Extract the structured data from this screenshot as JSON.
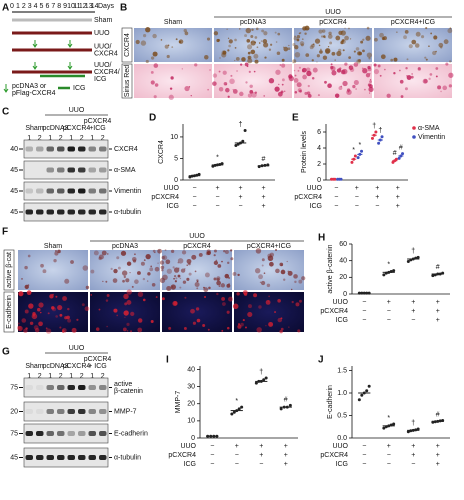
{
  "panels": {
    "A": {
      "letter": "A",
      "day_ticks": [
        0,
        1,
        2,
        3,
        4,
        5,
        6,
        7,
        8,
        9,
        10,
        11,
        12,
        13,
        14
      ],
      "day_unit": "Days",
      "rows": [
        [
          "Sham"
        ],
        [
          "UUO"
        ],
        [
          "UUO/",
          "CXCR4"
        ],
        [
          "UUO/",
          "CXCR4/",
          "ICG"
        ]
      ],
      "legend_plasmid": [
        "pcDNA3 or",
        "pFlag-CXCR4"
      ],
      "legend_icg": "ICG"
    },
    "B": {
      "letter": "B",
      "group_header": "UUO",
      "headers": [
        "Sham",
        "pcDNA3",
        "pCXCR4",
        "pCXCR4+ICG"
      ],
      "rows": [
        "CXCR4",
        "Sirius Red"
      ]
    },
    "C": {
      "letter": "C",
      "group_header": "UUO",
      "groups": [
        [
          "Sham"
        ],
        [
          "pcDNA3"
        ],
        [
          "pCXCR4"
        ],
        [
          "pCXCR4",
          "+ICG"
        ]
      ],
      "lanes": [
        1,
        2,
        1,
        2,
        1,
        2,
        1,
        2
      ],
      "markers": [
        40,
        45,
        45,
        45
      ],
      "bands": [
        [
          "CXCR4"
        ],
        [
          "α-SMA"
        ],
        [
          "Vimentin"
        ],
        [
          "α-tubulin"
        ]
      ]
    },
    "F": {
      "letter": "F",
      "group_header": "UUO",
      "headers": [
        "Sham",
        "pcDNA3",
        "pCXCR4",
        "pCXCR4+ICG"
      ],
      "rows": [
        "active β-cat",
        "E-cadherin"
      ]
    },
    "G": {
      "letter": "G",
      "group_header": "UUO",
      "groups": [
        [
          "Sham"
        ],
        [
          "pcDNA3"
        ],
        [
          "pCXCR4"
        ],
        [
          "pCXCR4",
          "+ ICG"
        ]
      ],
      "lanes": [
        1,
        2,
        1,
        2,
        1,
        2,
        1,
        2
      ],
      "markers": [
        75,
        20,
        75,
        45
      ],
      "bands": [
        [
          "active",
          "β-catenin"
        ],
        [
          "MMP-7"
        ],
        [
          "E-cadherin"
        ],
        [
          "α-tubulin"
        ]
      ]
    }
  },
  "chart_data": [
    {
      "type": "dot",
      "panel": "D",
      "ylabel": "CXCR4",
      "ylim": [
        0,
        13
      ],
      "yticks": [
        0,
        5,
        10
      ],
      "color": "#222222",
      "points": [
        [
          0.7,
          0.9,
          1.0,
          1.1,
          1.3
        ],
        [
          3.2,
          3.4,
          3.5,
          3.6,
          3.8
        ],
        [
          8.0,
          8.3,
          8.6,
          9.0,
          11.5
        ],
        [
          3.1,
          3.3,
          3.4,
          3.5
        ]
      ],
      "values": [
        1.0,
        3.5,
        8.6,
        3.3
      ],
      "annotations": [
        null,
        "*",
        "†",
        "#"
      ],
      "condition_rows": [
        {
          "label": "UUO",
          "signs": [
            "−",
            "+",
            "+",
            "+"
          ]
        },
        {
          "label": "pCXCR4",
          "signs": [
            "−",
            "−",
            "+",
            "+"
          ]
        },
        {
          "label": "ICG",
          "signs": [
            "−",
            "−",
            "−",
            "+"
          ]
        }
      ]
    },
    {
      "type": "dot",
      "panel": "E",
      "ylabel": "Protein levels",
      "ylim": [
        0,
        7
      ],
      "yticks": [
        0,
        2,
        4,
        6
      ],
      "legend": "top-right",
      "series": [
        {
          "name": "α-SMA",
          "color": "#e0304a",
          "points": [
            [
              0.1,
              0.1,
              0.1
            ],
            [
              2.2,
              2.6,
              3.0
            ],
            [
              5.2,
              5.6,
              6.0
            ],
            [
              2.2,
              2.4,
              2.6
            ]
          ],
          "values": [
            0.1,
            2.6,
            5.6,
            2.4
          ],
          "annotations": [
            null,
            "*",
            "†",
            "#"
          ]
        },
        {
          "name": "Vimentin",
          "color": "#4050c0",
          "points": [
            [
              0.1,
              0.1,
              0.1
            ],
            [
              2.8,
              3.2,
              3.6
            ],
            [
              4.6,
              5.0,
              5.4
            ],
            [
              2.7,
              3.0,
              3.3
            ]
          ],
          "values": [
            0.1,
            3.2,
            5.0,
            3.0
          ],
          "annotations": [
            null,
            "*",
            "†",
            "#"
          ]
        }
      ],
      "condition_rows": [
        {
          "label": "UUO",
          "signs": [
            "−",
            "+",
            "+",
            "+"
          ]
        },
        {
          "label": "pCXCR4",
          "signs": [
            "−",
            "−",
            "+",
            "+"
          ]
        },
        {
          "label": "ICG",
          "signs": [
            "−",
            "−",
            "−",
            "+"
          ]
        }
      ]
    },
    {
      "type": "dot",
      "panel": "H",
      "ylabel": "active β-catenin",
      "ylim": [
        0,
        60
      ],
      "yticks": [
        0,
        20,
        40,
        60
      ],
      "color": "#222222",
      "points": [
        [
          1,
          1,
          1,
          1,
          1
        ],
        [
          23,
          25,
          26,
          27,
          28
        ],
        [
          39,
          41,
          42,
          43,
          44
        ],
        [
          22,
          23,
          24,
          24,
          25
        ]
      ],
      "values": [
        1,
        26,
        42,
        24
      ],
      "annotations": [
        null,
        "*",
        "†",
        "#"
      ],
      "condition_rows": [
        {
          "label": "UUO",
          "signs": [
            "−",
            "+",
            "+",
            "+"
          ]
        },
        {
          "label": "pCXCR4",
          "signs": [
            "−",
            "−",
            "+",
            "+"
          ]
        },
        {
          "label": "ICG",
          "signs": [
            "−",
            "−",
            "−",
            "+"
          ]
        }
      ]
    },
    {
      "type": "dot",
      "panel": "I",
      "ylabel": "MMP-7",
      "ylim": [
        0,
        42
      ],
      "yticks": [
        0,
        10,
        20,
        30,
        40
      ],
      "color": "#222222",
      "points": [
        [
          1,
          1,
          1,
          1
        ],
        [
          14,
          15,
          16,
          17,
          18
        ],
        [
          32,
          33,
          33,
          34,
          35
        ],
        [
          17,
          18,
          18,
          19
        ]
      ],
      "values": [
        1,
        16,
        33,
        18
      ],
      "annotations": [
        null,
        "*",
        "†",
        "#"
      ],
      "condition_rows": [
        {
          "label": "UUO",
          "signs": [
            "−",
            "+",
            "+",
            "+"
          ]
        },
        {
          "label": "pCXCR4",
          "signs": [
            "−",
            "−",
            "+",
            "+"
          ]
        },
        {
          "label": "ICG",
          "signs": [
            "−",
            "−",
            "−",
            "+"
          ]
        }
      ]
    },
    {
      "type": "dot",
      "panel": "J",
      "ylabel": "E-cadherin",
      "ylim": [
        0,
        1.6
      ],
      "yticks": [
        {
          "value": 0,
          "label": "0.0"
        },
        0.5,
        {
          "value": 1,
          "label": "1.0"
        },
        1.5
      ],
      "color": "#222222",
      "points": [
        [
          0.85,
          0.95,
          1.0,
          1.05,
          1.15
        ],
        [
          0.22,
          0.25,
          0.27,
          0.29,
          0.31
        ],
        [
          0.14,
          0.16,
          0.17,
          0.18,
          0.2
        ],
        [
          0.35,
          0.36,
          0.37,
          0.38,
          0.39
        ]
      ],
      "values": [
        1.0,
        0.27,
        0.17,
        0.37
      ],
      "annotations": [
        null,
        "*",
        "†",
        "#"
      ],
      "condition_rows": [
        {
          "label": "UUO",
          "signs": [
            "−",
            "+",
            "+",
            "+"
          ]
        },
        {
          "label": "pCXCR4",
          "signs": [
            "−",
            "−",
            "+",
            "+"
          ]
        },
        {
          "label": "ICG",
          "signs": [
            "−",
            "−",
            "−",
            "+"
          ]
        }
      ]
    }
  ]
}
